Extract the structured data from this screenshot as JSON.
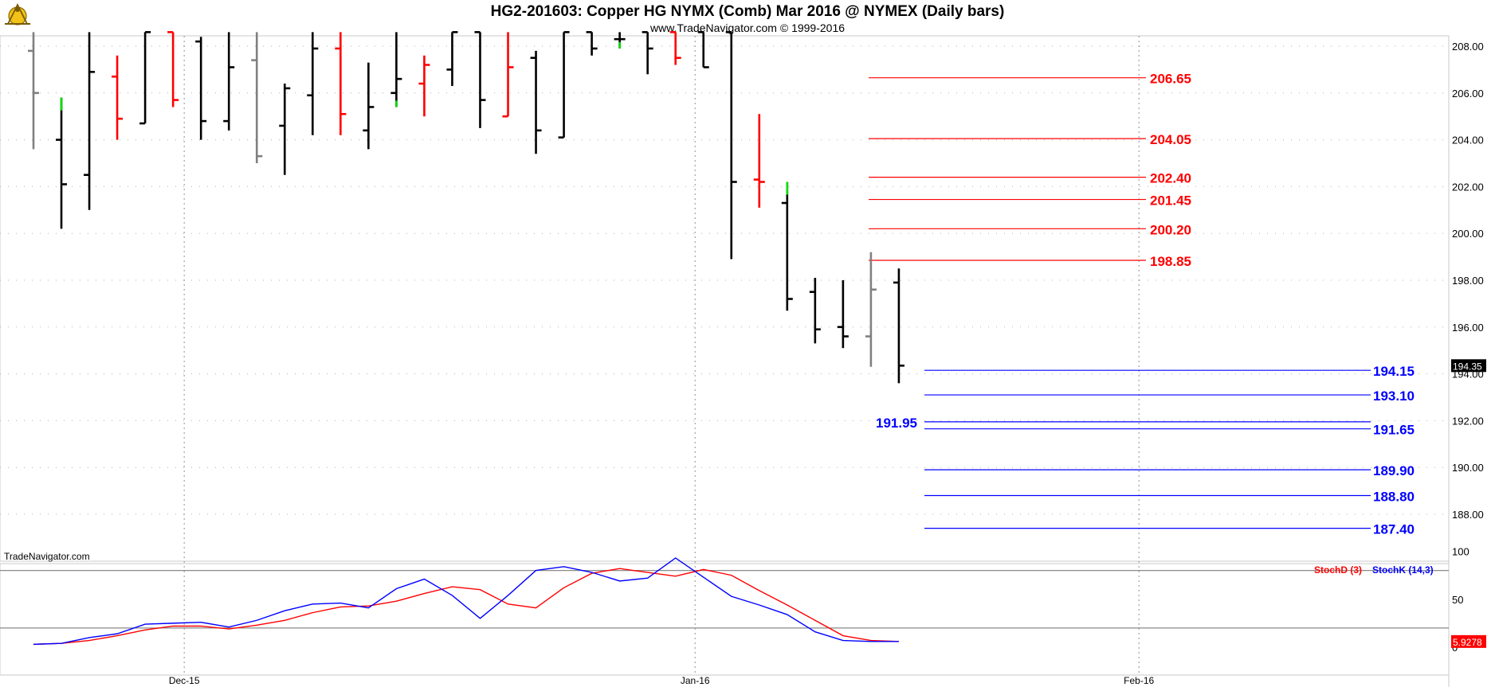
{
  "header": {
    "title": "HG2-201603:  Copper HG NYMX (Comb) Mar 2016 @ NYMEX  (Daily bars)",
    "subtitle": "www.TradeNavigator.com © 1999-2016"
  },
  "watermark": "TradeNavigator.com",
  "logo_icon": "sextant-logo-icon",
  "colors": {
    "up": "#00dd00",
    "down": "#ff0000",
    "neutral": "#000000",
    "gray": "#808080",
    "resistance": "#ff0000",
    "support": "#0000ff",
    "stochD": "#ff0000",
    "stochK": "#0000ff"
  },
  "chart_data": [
    {
      "type": "ohlc",
      "title": "HG2-201603:  Copper HG NYMX (Comb) Mar 2016 @ NYMEX  (Daily bars)",
      "x_labels": [
        "Dec-15",
        "Jan-16",
        "Feb-16"
      ],
      "yticks": [
        "188.00",
        "190.00",
        "192.00",
        "194.00",
        "196.00",
        "198.00",
        "200.00",
        "202.00",
        "204.00",
        "206.00",
        "208.00"
      ],
      "ylim": [
        185.8,
        208.6
      ],
      "last_price_label": "194.35",
      "bars": [
        {
          "o": 207.8,
          "h": 208.6,
          "l": 203.6,
          "c": 206.0,
          "col": "gray"
        },
        {
          "o": 204.0,
          "h": 205.8,
          "l": 200.2,
          "c": 202.1,
          "col": "black",
          "hi": "up"
        },
        {
          "o": 202.5,
          "h": 208.6,
          "l": 201.0,
          "c": 206.9,
          "col": "black"
        },
        {
          "o": 206.7,
          "h": 207.6,
          "l": 204.0,
          "c": 204.9,
          "col": "red"
        },
        {
          "o": 204.7,
          "h": 208.6,
          "l": 204.7,
          "c": 208.6,
          "col": "black"
        },
        {
          "o": 208.6,
          "h": 208.6,
          "l": 205.4,
          "c": 205.7,
          "col": "red"
        },
        {
          "o": 208.2,
          "h": 208.4,
          "l": 204.0,
          "c": 204.8,
          "col": "black"
        },
        {
          "o": 204.8,
          "h": 208.6,
          "l": 204.4,
          "c": 207.1,
          "col": "black"
        },
        {
          "o": 207.4,
          "h": 208.6,
          "l": 203.0,
          "c": 203.3,
          "col": "gray"
        },
        {
          "o": 204.6,
          "h": 206.4,
          "l": 202.5,
          "c": 206.2,
          "col": "black"
        },
        {
          "o": 205.9,
          "h": 208.6,
          "l": 204.2,
          "c": 207.9,
          "col": "black"
        },
        {
          "o": 207.9,
          "h": 208.6,
          "l": 204.2,
          "c": 205.1,
          "col": "red"
        },
        {
          "o": 204.4,
          "h": 207.3,
          "l": 203.6,
          "c": 205.4,
          "col": "black"
        },
        {
          "o": 206.0,
          "h": 208.6,
          "l": 205.4,
          "c": 206.6,
          "col": "black",
          "lo": "up"
        },
        {
          "o": 206.4,
          "h": 207.6,
          "l": 205.0,
          "c": 207.2,
          "col": "red"
        },
        {
          "o": 207.0,
          "h": 208.6,
          "l": 206.3,
          "c": 208.6,
          "col": "black"
        },
        {
          "o": 208.6,
          "h": 208.6,
          "l": 204.5,
          "c": 205.7,
          "col": "black"
        },
        {
          "o": 205.0,
          "h": 208.6,
          "l": 205.0,
          "c": 207.1,
          "col": "red"
        },
        {
          "o": 207.5,
          "h": 207.8,
          "l": 203.4,
          "c": 204.4,
          "col": "black"
        },
        {
          "o": 204.1,
          "h": 208.6,
          "l": 204.1,
          "c": 208.6,
          "col": "black"
        },
        {
          "o": 208.6,
          "h": 208.6,
          "l": 207.6,
          "c": 207.9,
          "col": "black"
        },
        {
          "o": 208.3,
          "h": 208.6,
          "l": 207.9,
          "c": 208.3,
          "col": "black",
          "lo": "up"
        },
        {
          "o": 208.6,
          "h": 208.6,
          "l": 206.8,
          "c": 207.9,
          "col": "black"
        },
        {
          "o": 208.6,
          "h": 208.6,
          "l": 207.2,
          "c": 207.5,
          "col": "red"
        },
        {
          "o": 208.6,
          "h": 208.6,
          "l": 207.1,
          "c": 207.1,
          "col": "black"
        },
        {
          "o": 208.6,
          "h": 208.6,
          "l": 198.9,
          "c": 202.2,
          "col": "black"
        },
        {
          "o": 202.3,
          "h": 205.1,
          "l": 201.1,
          "c": 202.2,
          "col": "red"
        },
        {
          "o": 201.3,
          "h": 202.2,
          "l": 196.7,
          "c": 197.2,
          "col": "black",
          "hi": "up"
        },
        {
          "o": 197.5,
          "h": 198.1,
          "l": 195.3,
          "c": 195.9,
          "col": "black"
        },
        {
          "o": 196.0,
          "h": 198.0,
          "l": 195.1,
          "c": 195.6,
          "col": "black"
        },
        {
          "o": 195.6,
          "h": 199.2,
          "l": 194.3,
          "c": 197.6,
          "col": "gray"
        },
        {
          "o": 197.9,
          "h": 198.5,
          "l": 193.6,
          "c": 194.35,
          "col": "black"
        }
      ],
      "resistance_levels": [
        "206.65",
        "204.05",
        "202.40",
        "201.45",
        "200.20",
        "198.85"
      ],
      "support_levels": [
        "194.15",
        "193.10",
        "191.65",
        "189.90",
        "188.80",
        "187.40"
      ],
      "extra_support_label": "191.95"
    },
    {
      "type": "line",
      "yticks": [
        "0",
        "50",
        "100"
      ],
      "ylim": [
        0,
        100
      ],
      "overbought": 80,
      "oversold": 20,
      "last_value_label": "5.9278",
      "series": [
        {
          "name": "StochD (3)",
          "color": "#ff0000",
          "values": [
            3,
            4,
            7,
            12,
            18,
            22,
            22,
            19,
            23,
            28,
            36,
            42,
            43,
            48,
            56,
            63,
            60,
            45,
            41,
            62,
            77,
            82,
            78,
            74,
            81,
            75,
            59,
            44,
            28,
            12,
            7,
            6
          ]
        },
        {
          "name": "StochK (14,3)",
          "color": "#0000ff",
          "values": [
            3,
            4,
            10,
            14,
            24,
            25,
            26,
            21,
            28,
            38,
            45,
            46,
            41,
            61,
            71,
            54,
            30,
            54,
            80,
            84,
            78,
            69,
            72,
            93,
            73,
            53,
            44,
            34,
            16,
            7,
            6,
            5.9278
          ]
        }
      ]
    }
  ]
}
